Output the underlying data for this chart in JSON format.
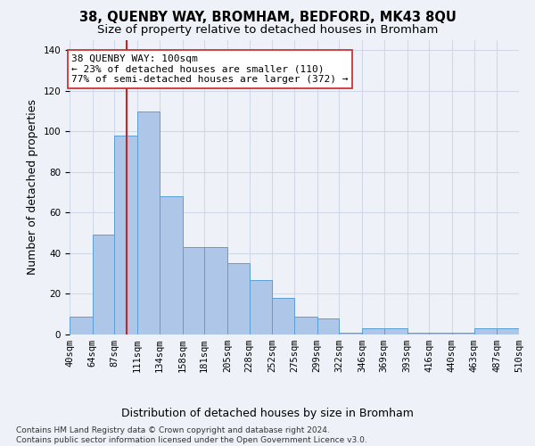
{
  "title": "38, QUENBY WAY, BROMHAM, BEDFORD, MK43 8QU",
  "subtitle": "Size of property relative to detached houses in Bromham",
  "xlabel": "Distribution of detached houses by size in Bromham",
  "ylabel": "Number of detached properties",
  "bar_values": [
    9,
    49,
    98,
    110,
    68,
    43,
    43,
    35,
    27,
    18,
    9,
    8,
    1,
    3,
    3,
    1,
    1,
    1,
    3,
    3
  ],
  "bin_edges": [
    40,
    64,
    87,
    111,
    134,
    158,
    181,
    205,
    228,
    252,
    275,
    299,
    322,
    346,
    369,
    393,
    416,
    440,
    463,
    487,
    510
  ],
  "bar_color": "#aec6e8",
  "bar_edge_color": "#5a9fd4",
  "grid_color": "#d0d8e8",
  "background_color": "#eef2f8",
  "vline_x": 100,
  "vline_color": "#cc2222",
  "annotation_text": "38 QUENBY WAY: 100sqm\n← 23% of detached houses are smaller (110)\n77% of semi-detached houses are larger (372) →",
  "annotation_box_color": "#ffffff",
  "annotation_box_edge_color": "#cc2222",
  "ylim": [
    0,
    145
  ],
  "yticks": [
    0,
    20,
    40,
    60,
    80,
    100,
    120,
    140
  ],
  "x_tick_labels": [
    "40sqm",
    "64sqm",
    "87sqm",
    "111sqm",
    "134sqm",
    "158sqm",
    "181sqm",
    "205sqm",
    "228sqm",
    "252sqm",
    "275sqm",
    "299sqm",
    "322sqm",
    "346sqm",
    "369sqm",
    "393sqm",
    "416sqm",
    "440sqm",
    "463sqm",
    "487sqm",
    "510sqm"
  ],
  "footnote": "Contains HM Land Registry data © Crown copyright and database right 2024.\nContains public sector information licensed under the Open Government Licence v3.0.",
  "title_fontsize": 10.5,
  "subtitle_fontsize": 9.5,
  "ylabel_fontsize": 9,
  "xlabel_fontsize": 9,
  "tick_fontsize": 7.5,
  "annotation_fontsize": 8,
  "footnote_fontsize": 6.5
}
